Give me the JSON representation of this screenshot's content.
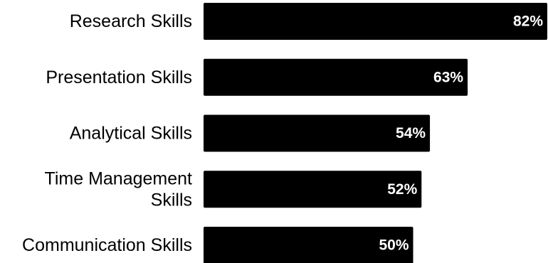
{
  "chart_data": {
    "type": "bar",
    "orientation": "horizontal",
    "categories": [
      [
        "Research Skills"
      ],
      [
        "Presentation Skills"
      ],
      [
        "Analytical Skills"
      ],
      [
        "Time Management",
        "Skills"
      ],
      [
        "Communication Skills"
      ]
    ],
    "values": [
      82,
      63,
      54,
      52,
      50
    ],
    "value_labels": [
      "82%",
      "63%",
      "54%",
      "52%",
      "50%"
    ],
    "value_unit": "%",
    "title": "",
    "xlabel": "",
    "ylabel": "",
    "grid": false,
    "legend": "none",
    "bar_color": "#000000",
    "value_label_color": "#ffffff",
    "label_color": "#000000",
    "background": "#ffffff"
  }
}
